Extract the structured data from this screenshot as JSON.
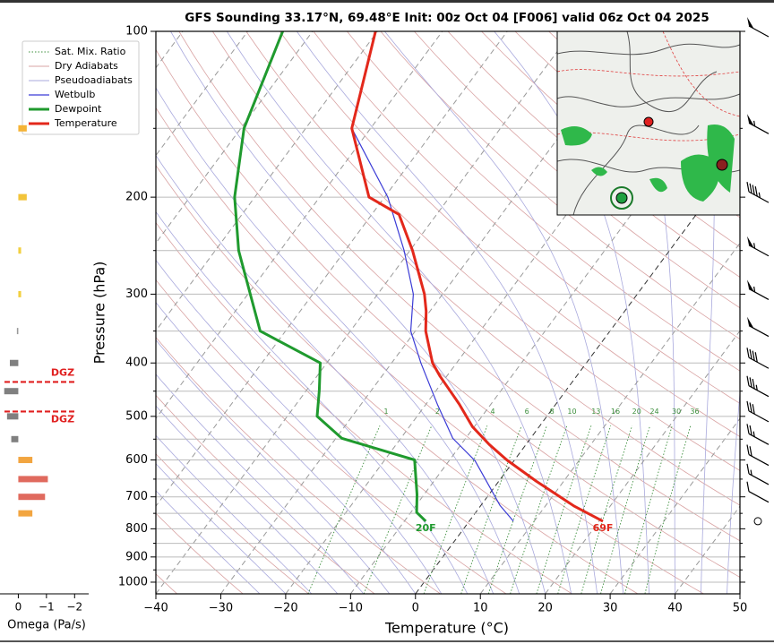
{
  "chart_data": [
    {
      "type": "skewt",
      "title": "GFS Sounding 33.17°N, 69.48°E Init: 00z Oct 04 [F006] valid 06z Oct 04 2025",
      "x_label": "Temperature (°C)",
      "y_label": "Pressure (hPa)",
      "xlim": [
        -40,
        50
      ],
      "xticks": [
        {
          "value": -40,
          "label": "−40"
        },
        {
          "value": -30,
          "label": "−30"
        },
        {
          "value": -20,
          "label": "−20"
        },
        {
          "value": -10,
          "label": "−10"
        },
        0,
        10,
        20,
        30,
        40,
        50
      ],
      "ylim": [
        1050,
        100
      ],
      "yticks": [
        100,
        200,
        300,
        400,
        500,
        600,
        700,
        800,
        900,
        1000
      ],
      "yminorticks": [
        150,
        250,
        350,
        450,
        550,
        650,
        750,
        850,
        950
      ],
      "log_y": true,
      "grid": true,
      "legend": "upper left",
      "background_lines": [
        {
          "name": "Sat. Mix. Ratio",
          "color": "#3d8f3d",
          "linestyle": "dotted",
          "values": [
            1,
            2,
            4,
            6,
            8,
            10,
            13,
            16,
            20,
            24,
            30,
            36
          ]
        },
        {
          "name": "Dry Adiabats",
          "color": "#d9a3a3",
          "linestyle": "solid"
        },
        {
          "name": "Pseudoadiabats",
          "color": "#a9a9dd",
          "linestyle": "solid"
        }
      ],
      "series": [
        {
          "name": "Wetbulb",
          "color": "#3b3bd6",
          "linewidth": 1.2,
          "pressure": [
            775,
            725,
            602,
            548,
            477,
            400,
            350,
            300,
            250,
            200,
            150
          ],
          "temperature": [
            6.8,
            2.9,
            -6.0,
            -12.0,
            -18.1,
            -25.5,
            -30.7,
            -34.5,
            -40.9,
            -49.5,
            -62.9
          ]
        },
        {
          "name": "Dewpoint",
          "color": "#1f9a2e",
          "linewidth": 3,
          "end_label": "20F",
          "pressure": [
            775,
            747,
            693,
            600,
            548,
            500,
            449,
            400,
            350,
            250,
            200,
            150,
            100
          ],
          "temperature": [
            -6.7,
            -9.1,
            -11.1,
            -15.4,
            -29.1,
            -35.4,
            -38.0,
            -41.0,
            -53.9,
            -66.4,
            -73.1,
            -79.5,
            -84.6
          ]
        },
        {
          "name": "Temperature",
          "color": "#e3281b",
          "linewidth": 3,
          "end_label": "69F",
          "pressure": [
            775,
            728,
            656,
            600,
            562,
            522,
            475,
            423,
            400,
            350,
            322,
            300,
            250,
            215,
            200,
            150,
            100
          ],
          "temperature": [
            20.6,
            14.5,
            5.8,
            -1.2,
            -5.7,
            -10.3,
            -14.9,
            -21.0,
            -23.7,
            -28.4,
            -30.6,
            -32.8,
            -39.6,
            -45.8,
            -52.4,
            -62.9,
            -70.3
          ]
        }
      ],
      "wind": {
        "pressure": [
          100,
          150,
          200,
          250,
          300,
          350,
          400,
          450,
          500,
          550,
          600,
          650,
          700,
          775
        ],
        "speed": [
          50,
          55,
          45,
          55,
          55,
          50,
          40,
          35,
          30,
          25,
          20,
          15,
          10,
          0
        ]
      }
    },
    {
      "type": "bar",
      "orientation": "horizontal",
      "x_label": "Omega (Pa/s)",
      "xlim": [
        0.65,
        -2.5
      ],
      "xticks": [
        0,
        {
          "value": -1,
          "label": "−1"
        },
        {
          "value": -2,
          "label": "−2"
        }
      ],
      "ylim": [
        1050,
        100
      ],
      "pressure": [
        150,
        200,
        250,
        300,
        350,
        400,
        450,
        500,
        550,
        600,
        650,
        700,
        750
      ],
      "values": [
        -0.3,
        -0.3,
        -0.1,
        -0.1,
        0.05,
        0.3,
        0.5,
        0.4,
        0.25,
        -0.5,
        -1.05,
        -0.95,
        -0.5
      ],
      "colors": [
        "#f5b335",
        "#f2c43a",
        "#f2d040",
        "#f2d040",
        "#999999",
        "#808080",
        "#808080",
        "#808080",
        "#808080",
        "#f2a540",
        "#e06a5e",
        "#e06a5e",
        "#f2a540"
      ],
      "dgz": {
        "label": "DGZ",
        "pressure": [
          433,
          490
        ],
        "color": "#e02020"
      }
    }
  ]
}
